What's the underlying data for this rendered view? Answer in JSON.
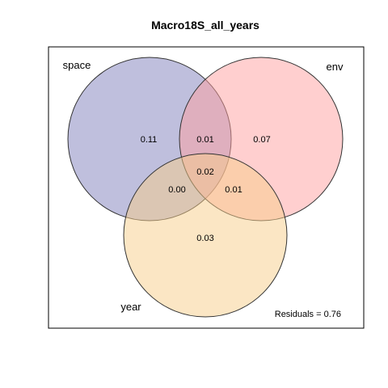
{
  "title": "Macro18S_all_years",
  "sets": [
    {
      "key": "space",
      "label": "space",
      "color": "#8080bb"
    },
    {
      "key": "env",
      "label": "env",
      "color": "#ffa0a0"
    },
    {
      "key": "year",
      "label": "year",
      "color": "#f8cd8a"
    }
  ],
  "fractions": {
    "space_only": "0.11",
    "space_env": "0.01",
    "env_only": "0.07",
    "all_three": "0.02",
    "space_year": "0.00",
    "env_year": "0.01",
    "year_only": "0.03"
  },
  "residuals": "Residuals = 0.76"
}
